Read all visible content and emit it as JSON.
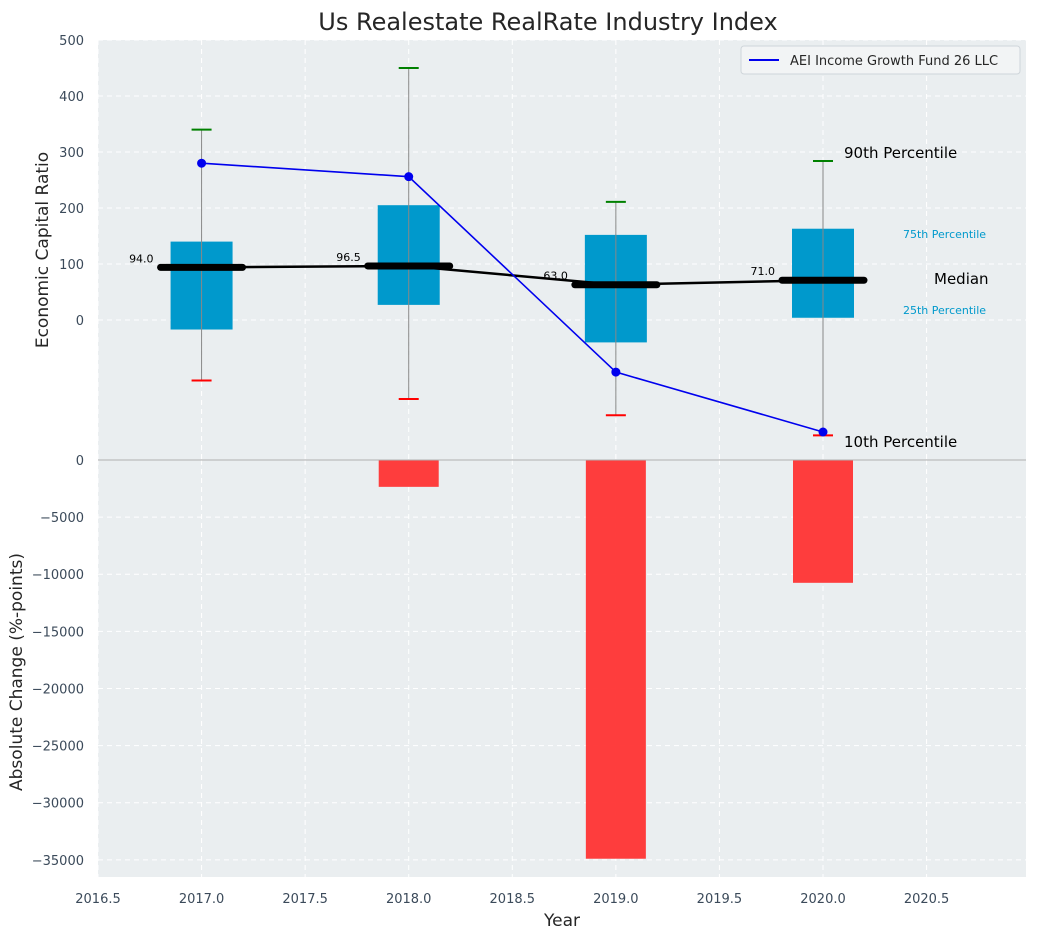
{
  "chart_data": {
    "type": "box+line+bar",
    "title": "Us Realestate RealRate Industry Index",
    "xlabel": "Year",
    "xlim": [
      2016.5,
      2020.98
    ],
    "x_ticks": [
      2016.5,
      2017.0,
      2017.5,
      2018.0,
      2018.5,
      2019.0,
      2019.5,
      2020.0,
      2020.5
    ],
    "x_tick_labels": [
      "2016.5",
      "2017.0",
      "2017.5",
      "2018.0",
      "2018.5",
      "2019.0",
      "2019.5",
      "2020.0",
      "2020.5"
    ],
    "top_panel": {
      "ylabel": "Economic Capital Ratio",
      "ylim": [
        -250,
        500
      ],
      "y_ticks": [
        0,
        100,
        200,
        300,
        400,
        500
      ],
      "y_tick_labels": [
        "0",
        "100",
        "200",
        "300",
        "400",
        "500"
      ],
      "boxes": [
        {
          "year": 2017,
          "p10": -108,
          "p25": -17,
          "median": 94.0,
          "p75": 140,
          "p90": 340,
          "median_label": "94.0"
        },
        {
          "year": 2018,
          "p10": -141,
          "p25": 27,
          "median": 96.5,
          "p75": 205,
          "p90": 450,
          "median_label": "96.5"
        },
        {
          "year": 2019,
          "p10": -170,
          "p25": -40,
          "median": 63.0,
          "p75": 152,
          "p90": 211,
          "median_label": "63.0"
        },
        {
          "year": 2020,
          "p10": -206,
          "p25": 4,
          "median": 71.0,
          "p75": 163,
          "p90": 284,
          "median_label": "71.0"
        }
      ],
      "median_line": {
        "x": [
          2017,
          2018,
          2019,
          2020
        ],
        "y": [
          94.0,
          96.5,
          63.0,
          71.0
        ]
      },
      "series": [
        {
          "name": "AEI Income Growth Fund 26 LLC",
          "x": [
            2017,
            2018,
            2019,
            2020
          ],
          "y": [
            280,
            256,
            -93,
            -200
          ],
          "color": "#0000ee"
        }
      ],
      "annotations": {
        "p90": "90th Percentile",
        "p75": "75th Percentile",
        "median": "Median",
        "p25": "25th Percentile",
        "p10": "10th Percentile"
      }
    },
    "bottom_panel": {
      "ylabel": "Absolute Change (%-points)",
      "ylim": [
        -36500,
        0
      ],
      "y_ticks": [
        0,
        -5000,
        -10000,
        -15000,
        -20000,
        -25000,
        -30000,
        -35000
      ],
      "y_tick_labels": [
        "0",
        "−5000",
        "−10000",
        "−15000",
        "−20000",
        "−25000",
        "−30000",
        "−35000"
      ],
      "bars": [
        {
          "year": 2017,
          "value": 0
        },
        {
          "year": 2018,
          "value": -2350
        },
        {
          "year": 2019,
          "value": -34900
        },
        {
          "year": 2020,
          "value": -10750
        }
      ]
    },
    "colors": {
      "box": "#0099cc",
      "bar": "#ff3333",
      "median": "#000000",
      "p90_cap": "#008000",
      "p10_cap": "#ff0000",
      "whisker": "#888888"
    }
  }
}
